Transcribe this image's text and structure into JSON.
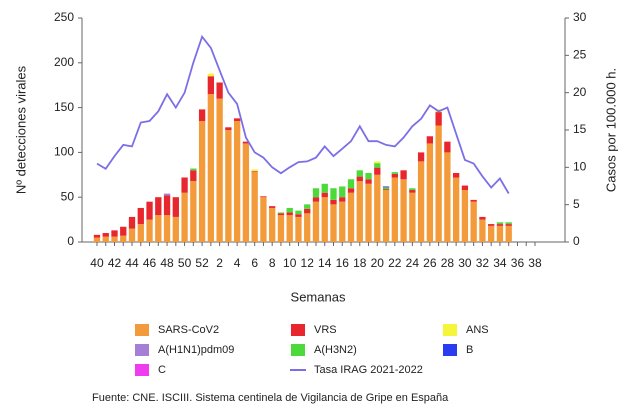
{
  "chart_data": {
    "type": "bar-line",
    "y_label": "Nº detecciones virales",
    "y2_label": "Casos por 100.000 h.",
    "x_label": "Semanas",
    "source": "Fuente: CNE. ISCIII. Sistema centinela de Vigilancia de Gripe en España",
    "categories": [
      "40",
      null,
      "42",
      null,
      "44",
      null,
      "46",
      null,
      "48",
      null,
      "50",
      null,
      "52",
      null,
      "2",
      null,
      "4",
      null,
      "6",
      null,
      "8",
      null,
      "10",
      null,
      "12",
      null,
      "14",
      null,
      "16",
      null,
      "18",
      null,
      "20",
      null,
      "22",
      null,
      "24",
      null,
      "26",
      null,
      "28",
      null,
      "30",
      null,
      "32",
      null,
      "34",
      null,
      "36",
      null,
      "38"
    ],
    "ylim": [
      0,
      250
    ],
    "yticks": [
      0,
      50,
      100,
      150,
      200,
      250
    ],
    "y2lim": [
      0,
      30
    ],
    "y2ticks": [
      0,
      5,
      10,
      15,
      20,
      25,
      30
    ],
    "series": [
      {
        "name": "SARS-CoV2",
        "color": "#f39a3a",
        "values": [
          5,
          6,
          6,
          7,
          15,
          20,
          25,
          30,
          30,
          28,
          55,
          68,
          135,
          165,
          160,
          125,
          135,
          110,
          78,
          50,
          38,
          30,
          30,
          28,
          32,
          45,
          50,
          42,
          45,
          55,
          68,
          65,
          75,
          58,
          72,
          70,
          55,
          90,
          110,
          130,
          100,
          72,
          58,
          45,
          25,
          18,
          18,
          18,
          null,
          null,
          null
        ]
      },
      {
        "name": "VRS",
        "color": "#e8262d",
        "values": [
          3,
          4,
          7,
          10,
          13,
          18,
          20,
          20,
          22,
          22,
          17,
          12,
          13,
          20,
          18,
          3,
          3,
          2,
          1,
          1,
          2,
          2,
          3,
          3,
          5,
          5,
          5,
          5,
          5,
          5,
          5,
          5,
          8,
          1,
          4,
          10,
          3,
          10,
          8,
          15,
          12,
          5,
          5,
          2,
          3,
          2,
          2,
          2,
          null,
          null,
          null
        ]
      },
      {
        "name": "A(H1N1)pdm09",
        "color": "#a57fd6",
        "values": [
          0,
          0,
          0,
          0,
          0,
          0,
          0,
          0,
          2,
          0,
          0,
          0,
          0,
          0,
          0,
          0,
          0,
          0,
          0,
          0,
          0,
          0,
          0,
          0,
          0,
          0,
          0,
          0,
          0,
          0,
          0,
          0,
          0,
          0,
          0,
          0,
          0,
          0,
          0,
          0,
          0,
          0,
          0,
          0,
          0,
          0,
          0,
          0,
          null,
          null,
          null
        ]
      },
      {
        "name": "A(H3N2)",
        "color": "#4cd93a",
        "values": [
          0,
          0,
          0,
          0,
          0,
          0,
          0,
          0,
          0,
          0,
          0,
          2,
          0,
          0,
          0,
          0,
          0,
          0,
          0,
          0,
          0,
          1,
          5,
          4,
          5,
          10,
          10,
          13,
          12,
          10,
          7,
          7,
          5,
          2,
          2,
          0,
          2,
          0,
          0,
          0,
          0,
          0,
          0,
          0,
          0,
          0,
          2,
          2,
          null,
          null,
          null
        ]
      },
      {
        "name": "C",
        "color": "#f03cf0",
        "values": [
          0,
          0,
          0,
          0,
          0,
          0,
          0,
          0,
          0,
          0,
          0,
          0,
          0,
          0,
          0,
          0,
          0,
          0,
          0,
          0,
          0,
          0,
          0,
          0,
          0,
          0,
          0,
          0,
          0,
          0,
          0,
          0,
          0,
          0,
          0,
          0,
          0,
          0,
          0,
          0,
          0,
          0,
          0,
          0,
          0,
          0,
          0,
          0,
          null,
          null,
          null
        ]
      },
      {
        "name": "ANS",
        "color": "#f5f53a",
        "values": [
          0,
          0,
          0,
          0,
          0,
          0,
          0,
          0,
          0,
          0,
          0,
          0,
          0,
          3,
          0,
          0,
          0,
          0,
          2,
          0,
          0,
          0,
          0,
          0,
          0,
          0,
          0,
          0,
          0,
          0,
          0,
          0,
          2,
          0,
          0,
          0,
          0,
          0,
          0,
          3,
          0,
          0,
          0,
          0,
          0,
          0,
          0,
          0,
          null,
          null,
          null
        ]
      },
      {
        "name": "B",
        "color": "#2a3cf0",
        "values": [
          0,
          0,
          0,
          0,
          0,
          0,
          0,
          0,
          0,
          0,
          0,
          0,
          0,
          0,
          0,
          0,
          0,
          0,
          0,
          0,
          0,
          0,
          0,
          0,
          0,
          0,
          0,
          0,
          0,
          0,
          0,
          0,
          0,
          1,
          0,
          0,
          0,
          0,
          0,
          0,
          0,
          0,
          0,
          0,
          0,
          0,
          0,
          0,
          null,
          null,
          null
        ]
      },
      {
        "name": "Tasa IRAG 2021-2022",
        "color": "#7b6fe8",
        "type": "line",
        "axis": "y2",
        "values": [
          10.5,
          9.8,
          11.5,
          13,
          12.8,
          16,
          16.2,
          17.5,
          19.8,
          18,
          20,
          24,
          27.5,
          26,
          23,
          20,
          18.5,
          14,
          12,
          11.3,
          10,
          9.2,
          10,
          10.7,
          10.8,
          11.3,
          12.8,
          11.5,
          12.5,
          13.5,
          15.5,
          13.5,
          13.5,
          13,
          12.8,
          14,
          15.5,
          16.5,
          18.3,
          17.5,
          18,
          14.5,
          11,
          10.5,
          8.8,
          7.3,
          8.5,
          6.5,
          null,
          null,
          null
        ]
      }
    ]
  }
}
